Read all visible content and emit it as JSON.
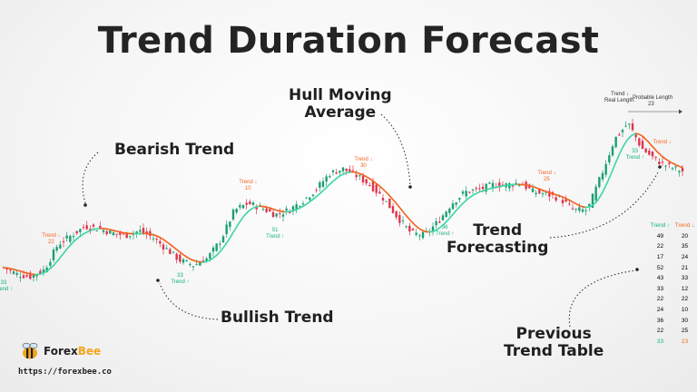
{
  "title": "Trend Duration Forecast",
  "brand": {
    "name_dark": "Forex",
    "name_accent": "Bee",
    "url": "https://forexbee.co"
  },
  "colors": {
    "bull": "#14b37d",
    "bear": "#f26522",
    "hma_up": "#3fd6a6",
    "hma_down": "#f26522",
    "text": "#242424",
    "candle_up": "#1a9e72",
    "candle_down": "#e0334a"
  },
  "annotations": {
    "bearish": "Bearish Trend",
    "hull": "Hull Moving\nAverage",
    "forecasting": "Trend\nForecasting",
    "bullish": "Bullish Trend",
    "previous": "Previous\nTrend Table"
  },
  "forecast": {
    "label": "Trend ↓",
    "sub_a": "Real Length:",
    "sub_b": "Probable Length",
    "value": "23"
  },
  "chart_data": {
    "type": "line",
    "x": [
      0,
      1,
      2,
      3,
      4,
      5,
      6,
      7,
      8,
      9,
      10,
      11,
      12,
      13,
      14,
      15,
      16,
      17,
      18,
      19,
      20,
      21,
      22,
      23,
      24,
      25,
      26,
      27,
      28,
      29,
      30,
      31,
      32,
      33,
      34,
      35,
      36,
      37,
      38,
      39,
      40,
      41,
      42,
      43,
      44,
      45,
      46,
      47,
      48,
      49,
      50
    ],
    "series": [
      {
        "values": [
          30,
          27,
          26,
          29,
          40,
          44,
          48,
          47,
          45,
          44,
          46,
          43,
          38,
          33,
          31,
          34,
          42,
          55,
          58,
          56,
          53,
          55,
          59,
          64,
          71,
          73,
          70,
          66,
          60,
          52,
          45,
          44,
          50,
          58,
          63,
          64,
          66,
          66,
          67,
          63,
          62,
          60,
          55,
          55,
          70,
          86,
          93,
          82,
          77,
          74,
          72
        ]
      }
    ],
    "trend_labels": [
      {
        "x": 0,
        "dir": "up",
        "text": "Trend ↑",
        "length": "33"
      },
      {
        "x": 3.5,
        "dir": "down",
        "text": "Trend ↓",
        "length": "22"
      },
      {
        "x": 13,
        "dir": "up",
        "text": "Trend ↑",
        "length": "33"
      },
      {
        "x": 18,
        "dir": "down",
        "text": "Trend ↓",
        "length": "10"
      },
      {
        "x": 20,
        "dir": "up",
        "text": "Trend ↑",
        "length": "51"
      },
      {
        "x": 26.5,
        "dir": "down",
        "text": "Trend ↓",
        "length": "30"
      },
      {
        "x": 32.5,
        "dir": "up",
        "text": "Trend ↑",
        "length": "36"
      },
      {
        "x": 40,
        "dir": "down",
        "text": "Trend ↓",
        "length": "25"
      },
      {
        "x": 46.5,
        "dir": "up",
        "text": "Trend ↑",
        "length": "33"
      },
      {
        "x": 48.5,
        "dir": "down",
        "text": "Trend ↓",
        "length": ""
      }
    ],
    "table": {
      "headers": [
        "Trend ↑",
        "Trend ↓"
      ],
      "rows": [
        [
          "49",
          "20"
        ],
        [
          "22",
          "35"
        ],
        [
          "17",
          "24"
        ],
        [
          "52",
          "21"
        ],
        [
          "43",
          "33"
        ],
        [
          "33",
          "12"
        ],
        [
          "22",
          "22"
        ],
        [
          "24",
          "10"
        ],
        [
          "36",
          "30"
        ],
        [
          "22",
          "25"
        ],
        [
          "33",
          "23"
        ]
      ]
    }
  }
}
